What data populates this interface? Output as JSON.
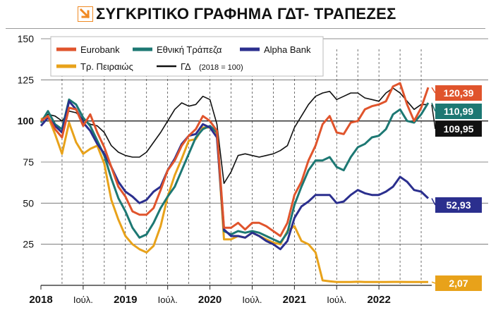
{
  "title": "ΣΥΓΚΡΙΤΙΚΟ ΓΡΑΦΗΜΑ ΓΔΤ- ΤΡΑΠΕΖΕΣ",
  "colors": {
    "eurobank": "#e0542c",
    "ethniki": "#1d7873",
    "alpha": "#2b2f8e",
    "peiraios": "#e8a21a",
    "gd": "#111111",
    "icon": "#f08a24"
  },
  "chart_data": {
    "type": "line",
    "ylim": [
      0,
      150
    ],
    "yticks": [
      25,
      50,
      75,
      100,
      125,
      150
    ],
    "xlim": [
      0,
      55.5
    ],
    "xticks": [
      {
        "label": "2018",
        "x": 0,
        "kind": "year"
      },
      {
        "label": "Ιούλ.",
        "x": 6,
        "kind": "month"
      },
      {
        "label": "2019",
        "x": 12,
        "kind": "year"
      },
      {
        "label": "Ιούλ.",
        "x": 18,
        "kind": "month"
      },
      {
        "label": "2020",
        "x": 24,
        "kind": "year"
      },
      {
        "label": "Ιούλ.",
        "x": 30,
        "kind": "month"
      },
      {
        "label": "2021",
        "x": 36,
        "kind": "year"
      },
      {
        "label": "Ιούλ.",
        "x": 42,
        "kind": "month"
      },
      {
        "label": "2022",
        "x": 48,
        "kind": "year"
      }
    ],
    "legend": {
      "placement": "top-left",
      "note": "(2018 = 100)"
    },
    "series": [
      {
        "name": "Eurobank",
        "key": "eurobank",
        "end_label": "120,39",
        "x": [
          0,
          1,
          2,
          3,
          4,
          5,
          6,
          7,
          8,
          9,
          10,
          11,
          12,
          13,
          14,
          15,
          16,
          17,
          18,
          19,
          20,
          21,
          22,
          23,
          24,
          25,
          26,
          27,
          28,
          29,
          30,
          31,
          32,
          33,
          34,
          35,
          36,
          37,
          38,
          39,
          40,
          41,
          42,
          43,
          44,
          45,
          46,
          47,
          48,
          49,
          50,
          51,
          52,
          53,
          54,
          55
        ],
        "y": [
          100,
          103,
          95,
          90,
          108,
          107,
          97,
          104,
          93,
          84,
          72,
          60,
          54,
          45,
          43,
          43,
          47,
          58,
          70,
          76,
          85,
          91,
          95,
          103,
          100,
          94,
          35,
          35,
          38,
          34,
          38,
          38,
          36,
          33,
          30,
          38,
          55,
          63,
          76,
          85,
          98,
          103,
          93,
          92,
          99,
          100,
          107,
          109,
          110,
          112,
          121,
          123,
          110,
          100,
          108,
          120.39
        ]
      },
      {
        "name": "Εθνική Τράπεζα",
        "key": "ethniki",
        "end_label": "110,99",
        "x": [
          0,
          1,
          2,
          3,
          4,
          5,
          6,
          7,
          8,
          9,
          10,
          11,
          12,
          13,
          14,
          15,
          16,
          17,
          18,
          19,
          20,
          21,
          22,
          23,
          24,
          25,
          26,
          27,
          28,
          29,
          30,
          31,
          32,
          33,
          34,
          35,
          36,
          37,
          38,
          39,
          40,
          41,
          42,
          43,
          44,
          45,
          46,
          47,
          48,
          49,
          50,
          51,
          52,
          53,
          54,
          55
        ],
        "y": [
          99,
          106,
          98,
          95,
          113,
          110,
          102,
          97,
          88,
          79,
          65,
          53,
          45,
          35,
          29,
          31,
          38,
          47,
          54,
          60,
          70,
          80,
          90,
          95,
          97,
          93,
          33,
          31,
          33,
          32,
          33,
          32,
          30,
          28,
          26,
          32,
          49,
          60,
          70,
          76,
          76,
          78,
          72,
          70,
          78,
          84,
          86,
          90,
          91,
          95,
          104,
          107,
          100,
          99,
          104,
          110.99
        ]
      },
      {
        "name": "Alpha Bank",
        "key": "alpha",
        "end_label": "52,93",
        "x": [
          0,
          1,
          2,
          3,
          4,
          5,
          6,
          7,
          8,
          9,
          10,
          11,
          12,
          13,
          14,
          15,
          16,
          17,
          18,
          19,
          20,
          21,
          22,
          23,
          24,
          25,
          26,
          27,
          28,
          29,
          30,
          31,
          32,
          33,
          34,
          35,
          36,
          37,
          38,
          39,
          40,
          41,
          42,
          43,
          44,
          45,
          46,
          47,
          48,
          49,
          50,
          51,
          52,
          53,
          54,
          55
        ],
        "y": [
          97,
          102,
          97,
          93,
          112,
          107,
          99,
          94,
          86,
          80,
          72,
          63,
          57,
          54,
          50,
          52,
          57,
          60,
          70,
          77,
          86,
          91,
          92,
          98,
          96,
          90,
          34,
          30,
          30,
          29,
          32,
          30,
          27,
          25,
          22,
          27,
          41,
          48,
          51,
          55,
          55,
          55,
          50,
          51,
          55,
          58,
          56,
          55,
          55,
          57,
          60,
          66,
          63,
          58,
          57,
          52.93
        ]
      },
      {
        "name": "Τρ. Πειραιώς",
        "key": "peiraios",
        "end_label": "2,07",
        "x": [
          0,
          1,
          2,
          3,
          4,
          5,
          6,
          7,
          8,
          9,
          10,
          11,
          12,
          13,
          14,
          15,
          16,
          17,
          18,
          19,
          20,
          21,
          22,
          23,
          24,
          25,
          26,
          27,
          28,
          29,
          30,
          31,
          32,
          33,
          34,
          35,
          36,
          37,
          38,
          39,
          40,
          41,
          42,
          43,
          44,
          45,
          46,
          47,
          48,
          49,
          50,
          51,
          52,
          53,
          54,
          55
        ],
        "y": [
          101,
          103,
          92,
          80,
          99,
          87,
          80,
          83,
          85,
          74,
          52,
          40,
          30,
          25,
          22,
          20,
          24,
          36,
          54,
          67,
          77,
          88,
          89,
          96,
          96,
          92,
          28,
          28,
          30,
          29,
          32,
          30,
          28,
          26,
          25,
          33,
          36,
          27,
          25,
          20,
          3,
          2.5,
          2,
          2,
          2,
          2.2,
          2,
          2,
          2,
          2,
          2.1,
          2.1,
          2,
          2,
          2,
          2.07
        ]
      },
      {
        "name": "ΓΔ",
        "key": "gd",
        "end_label": "109,95",
        "x": [
          0,
          1,
          2,
          3,
          4,
          5,
          6,
          7,
          8,
          9,
          10,
          11,
          12,
          13,
          14,
          15,
          16,
          17,
          18,
          19,
          20,
          21,
          22,
          23,
          24,
          25,
          26,
          27,
          28,
          29,
          30,
          31,
          32,
          33,
          34,
          35,
          36,
          37,
          38,
          39,
          40,
          41,
          42,
          43,
          44,
          45,
          46,
          47,
          48,
          49,
          50,
          51,
          52,
          53,
          54,
          55
        ],
        "y": [
          100,
          104,
          103,
          100,
          106,
          105,
          101,
          98,
          97,
          93,
          85,
          81,
          79,
          78,
          78,
          81,
          87,
          93,
          100,
          107,
          111,
          109,
          110,
          115,
          113,
          98,
          62,
          69,
          79,
          80,
          79,
          78,
          79,
          80,
          82,
          85,
          96,
          103,
          110,
          115,
          117,
          118,
          113,
          115,
          117,
          117,
          114,
          113,
          112,
          117,
          120,
          117,
          112,
          107,
          110,
          109.95
        ]
      }
    ]
  }
}
